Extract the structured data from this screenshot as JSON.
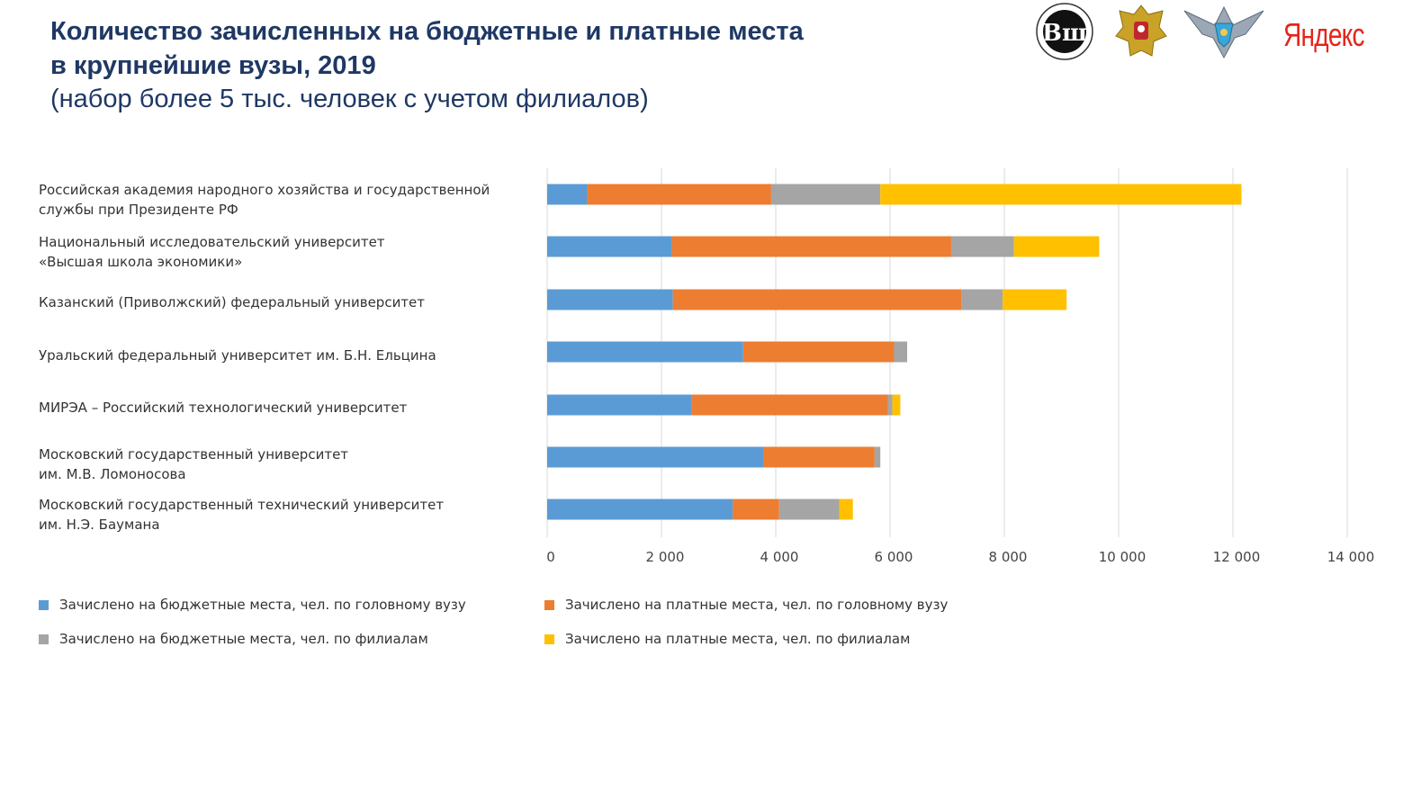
{
  "header": {
    "title_line1": "Количество зачисленных на бюджетные и платные места",
    "title_line2": "в крупнейшие вузы, 2019",
    "subtitle": "(набор более 5 тыс. человек с учетом филиалов)",
    "yandex_logo": "Яндекс"
  },
  "colors": {
    "budget_main": "#5b9bd5",
    "paid_main": "#ed7d31",
    "budget_branches": "#a5a5a5",
    "paid_branches": "#ffc000",
    "gridline": "#d9d9d9",
    "title": "#1f3864"
  },
  "chart_data": {
    "type": "bar",
    "orientation": "horizontal",
    "stacked": true,
    "title": "Количество зачисленных на бюджетные и платные места в крупнейшие вузы, 2019",
    "xlabel": "",
    "ylabel": "",
    "xlim": [
      0,
      14000
    ],
    "x_ticks": [
      0,
      2000,
      4000,
      6000,
      8000,
      10000,
      12000,
      14000
    ],
    "x_tick_labels": [
      "0",
      "2 000",
      "4 000",
      "6 000",
      "8 000",
      "10 000",
      "12 000",
      "14 000"
    ],
    "grid": true,
    "legend_position": "bottom",
    "categories": [
      [
        "Российская академия народного хозяйства и государственной",
        "службы при Президенте РФ"
      ],
      [
        "Национальный исследовательский университет",
        "«Высшая школа экономики»"
      ],
      [
        "Казанский (Приволжский) федеральный университет"
      ],
      [
        "Уральский федеральный университет им. Б.Н. Ельцина"
      ],
      [
        "МИРЭА – Российский технологический университет"
      ],
      [
        "Московский государственный университет",
        "им. М.В. Ломоносова"
      ],
      [
        "Московский государственный технический университет",
        "им. Н.Э. Баумана"
      ]
    ],
    "series": [
      {
        "name": "Зачислено на бюджетные места, чел. по головному вузу",
        "color_key": "budget_main",
        "values": [
          700,
          2180,
          2200,
          3430,
          2530,
          3780,
          3250
        ]
      },
      {
        "name": "Зачислено на платные места, чел. по головному вузу",
        "color_key": "paid_main",
        "values": [
          3220,
          4890,
          5050,
          2640,
          3430,
          1950,
          810
        ]
      },
      {
        "name": "Зачислено на бюджетные места, чел. по филиалам",
        "color_key": "budget_branches",
        "values": [
          1910,
          1100,
          720,
          230,
          80,
          100,
          1050
        ]
      },
      {
        "name": "Зачислено на платные места, чел. по филиалам",
        "color_key": "paid_branches",
        "values": [
          6320,
          1490,
          1120,
          0,
          140,
          0,
          240
        ]
      }
    ]
  }
}
